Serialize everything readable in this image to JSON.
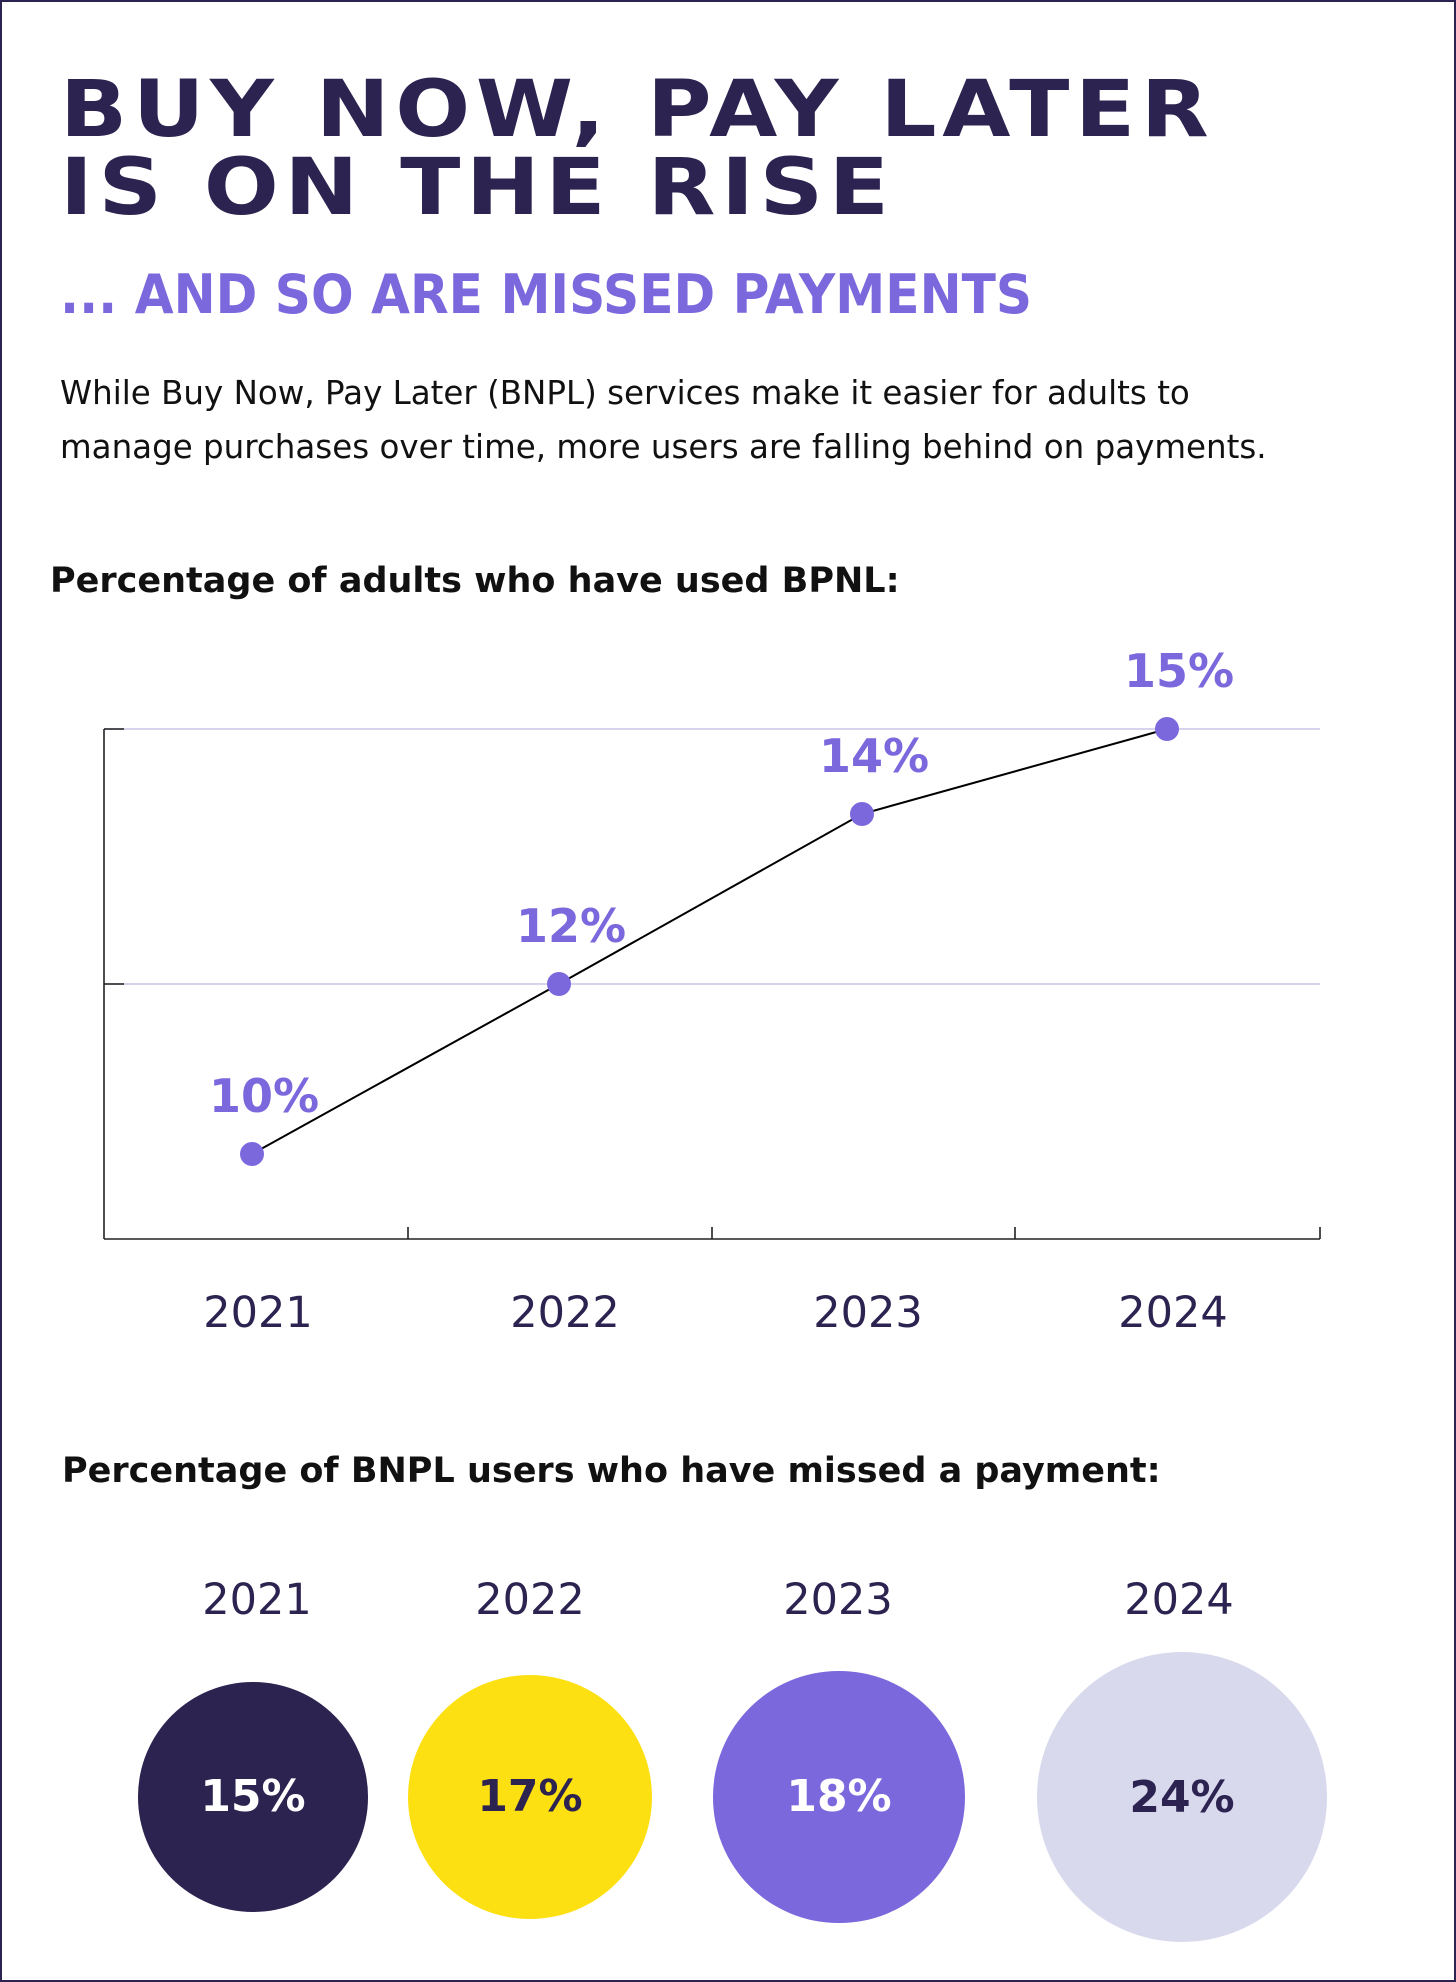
{
  "header": {
    "title_line_1": "BUY NOW, PAY LATER",
    "title_line_2": "IS ON THE RISE",
    "subtitle": "... AND SO ARE MISSED PAYMENTS",
    "intro_line_1": "While Buy Now, Pay Later (BNPL) services make it easier for adults to",
    "intro_line_2": "manage purchases over time, more users are falling behind on payments."
  },
  "colors": {
    "navy": "#2c2350",
    "purple": "#7b68dd",
    "yellow": "#fde012",
    "lavender": "#d9d9ee",
    "gridline": "#d6d4ec"
  },
  "chart_data": [
    {
      "type": "line",
      "title": "Percentage of adults who have used BPNL:",
      "categories": [
        "2021",
        "2022",
        "2023",
        "2024"
      ],
      "values": [
        10,
        12,
        14,
        15
      ],
      "data_labels": [
        "10%",
        "12%",
        "14%",
        "15%"
      ],
      "unit": "%",
      "ylim": [
        9,
        15
      ],
      "grid": true,
      "y_tick_labels_shown": false,
      "line_color": "#000000",
      "marker_color": "#7b68dd"
    },
    {
      "type": "bubble",
      "title": "Percentage of BNPL users who have missed a payment:",
      "categories": [
        "2021",
        "2022",
        "2023",
        "2024"
      ],
      "values": [
        15,
        17,
        18,
        24
      ],
      "data_labels": [
        "15%",
        "17%",
        "18%",
        "24%"
      ],
      "unit": "%",
      "colors": [
        "#2c2350",
        "#fde012",
        "#7b68dd",
        "#d9d9ee"
      ],
      "label_colors": [
        "#ffffff",
        "#2c2350",
        "#ffffff",
        "#2c2350"
      ]
    }
  ]
}
